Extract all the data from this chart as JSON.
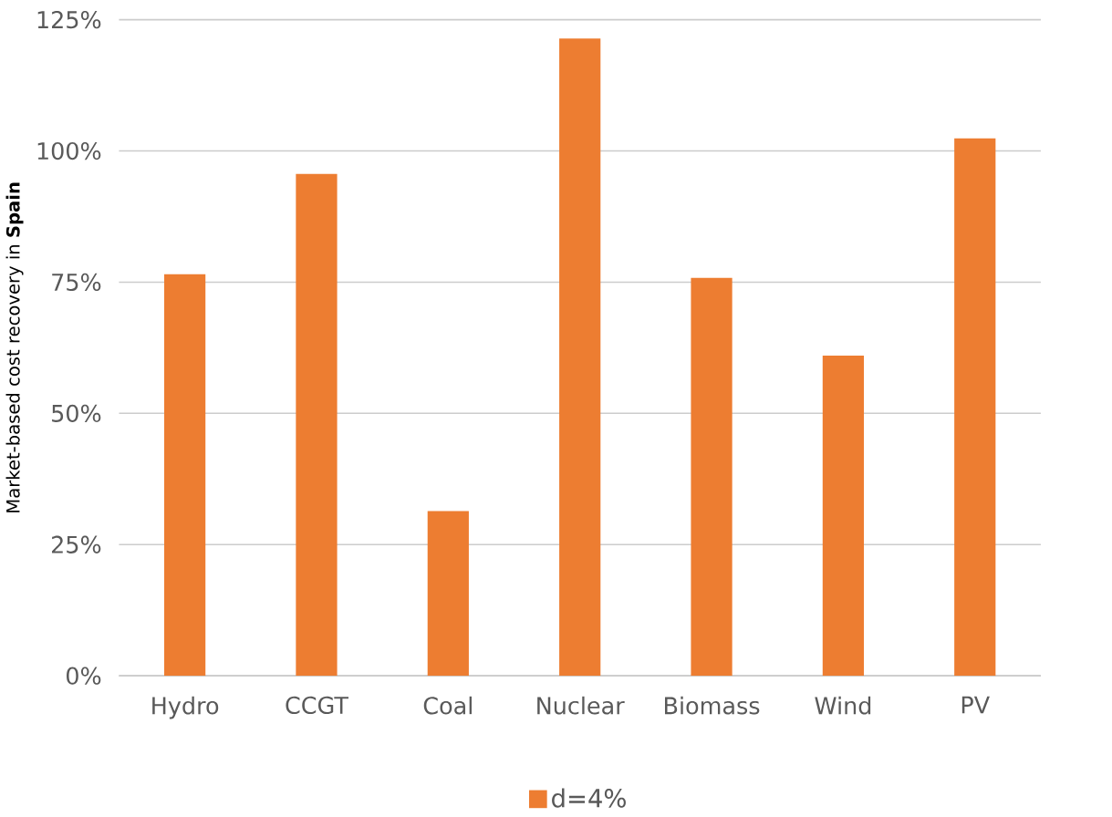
{
  "chart_data": {
    "type": "bar",
    "ylabel": "Market-based cost recovery in **Spain**",
    "categories": [
      "Hydro",
      "CCGT",
      "Coal",
      "Nuclear",
      "Biomass",
      "Wind",
      "PV"
    ],
    "series": [
      {
        "name": "d=4%",
        "color": "#ed7d31",
        "values": [
          76.5,
          95.6,
          31.4,
          121.4,
          75.8,
          61,
          102.4
        ]
      }
    ],
    "ylim": [
      0,
      125
    ],
    "yticks": [
      {
        "value": 0,
        "label": "0%"
      },
      {
        "value": 25,
        "label": "25%"
      },
      {
        "value": 50,
        "label": "50%"
      },
      {
        "value": 75,
        "label": "75%"
      },
      {
        "value": 100,
        "label": "100%"
      },
      {
        "value": 125,
        "label": "125%"
      }
    ],
    "grid": "y",
    "legend": "bottom"
  }
}
